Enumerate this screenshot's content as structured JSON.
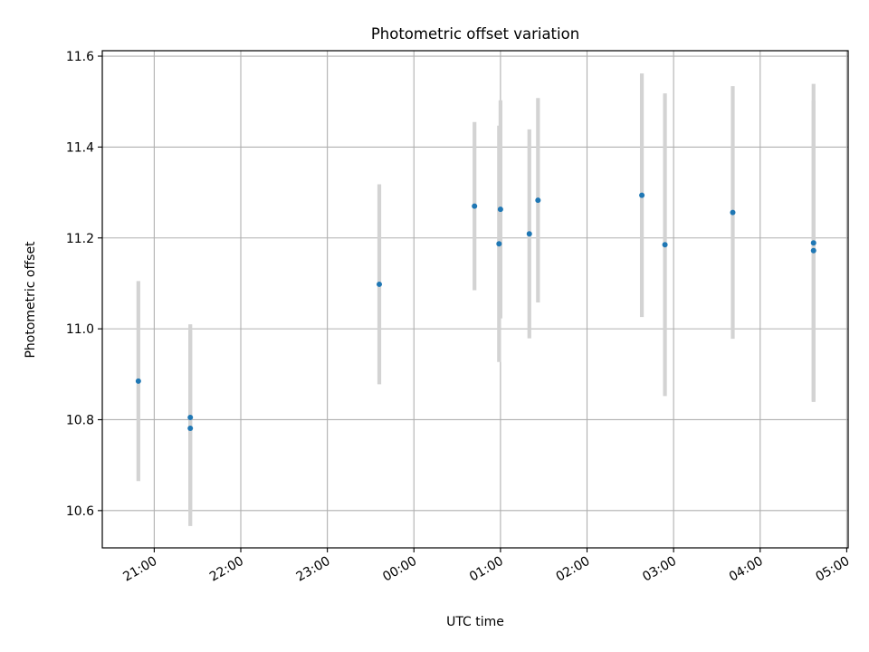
{
  "chart_data": {
    "type": "scatter",
    "title": "Photometric offset variation",
    "xlabel": "UTC time",
    "ylabel": "Photometric offset",
    "x_ticks": [
      "21:00",
      "22:00",
      "23:00",
      "00:00",
      "01:00",
      "02:00",
      "03:00",
      "04:00",
      "05:00"
    ],
    "y_ticks": [
      "10.6",
      "10.8",
      "11.0",
      "11.2",
      "11.4",
      "11.6"
    ],
    "xlim": [
      "20:24",
      "05:01"
    ],
    "ylim": [
      10.518,
      11.612
    ],
    "grid": true,
    "point_color": "#1f77b4",
    "errorbar_color": "#d3d3d3",
    "series": [
      {
        "points": [
          {
            "x": "20:49",
            "y": 10.885,
            "err": 0.22
          },
          {
            "x": "21:25",
            "y": 10.805,
            "err": 0.205
          },
          {
            "x": "21:25",
            "y": 10.781,
            "err": 0.215
          },
          {
            "x": "23:36",
            "y": 11.098,
            "err": 0.22
          },
          {
            "x": "00:42",
            "y": 11.27,
            "err": 0.185
          },
          {
            "x": "00:59",
            "y": 11.187,
            "err": 0.26
          },
          {
            "x": "01:00",
            "y": 11.263,
            "err": 0.24
          },
          {
            "x": "01:20",
            "y": 11.209,
            "err": 0.23
          },
          {
            "x": "01:26",
            "y": 11.283,
            "err": 0.225
          },
          {
            "x": "02:38",
            "y": 11.294,
            "err": 0.268
          },
          {
            "x": "02:54",
            "y": 11.185,
            "err": 0.333
          },
          {
            "x": "03:41",
            "y": 11.256,
            "err": 0.278
          },
          {
            "x": "04:37",
            "y": 11.189,
            "err": 0.35
          },
          {
            "x": "04:37",
            "y": 11.172,
            "err": 0.33
          }
        ]
      }
    ]
  }
}
